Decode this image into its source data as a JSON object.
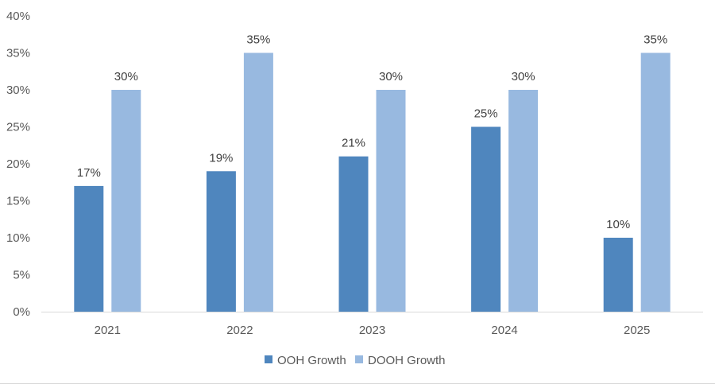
{
  "chart_data": {
    "type": "bar",
    "categories": [
      "2021",
      "2022",
      "2023",
      "2024",
      "2025"
    ],
    "series": [
      {
        "name": "OOH Growth",
        "values": [
          17,
          19,
          21,
          25,
          10
        ],
        "labels": [
          "17%",
          "19%",
          "21%",
          "25%",
          "10%"
        ],
        "color": "#4f86be"
      },
      {
        "name": "DOOH Growth",
        "values": [
          30,
          35,
          30,
          30,
          35
        ],
        "labels": [
          "30%",
          "35%",
          "30%",
          "30%",
          "35%"
        ],
        "color": "#98b9e0"
      }
    ],
    "ylim": [
      0,
      40
    ],
    "yticks": [
      "0%",
      "5%",
      "10%",
      "15%",
      "20%",
      "25%",
      "30%",
      "35%",
      "40%"
    ],
    "ytick_values": [
      0,
      5,
      10,
      15,
      20,
      25,
      30,
      35,
      40
    ],
    "grid": false,
    "legend_position": "bottom",
    "title": "",
    "xlabel": "",
    "ylabel": ""
  }
}
